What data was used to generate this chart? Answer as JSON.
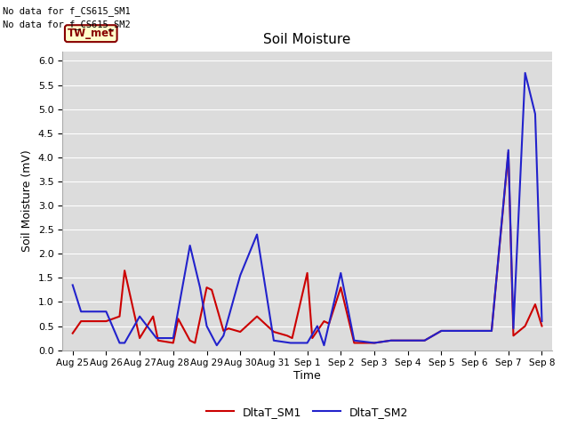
{
  "title": "Soil Moisture",
  "ylabel": "Soil Moisture (mV)",
  "xlabel": "Time",
  "ylim": [
    0.0,
    6.2
  ],
  "yticks": [
    0.0,
    0.5,
    1.0,
    1.5,
    2.0,
    2.5,
    3.0,
    3.5,
    4.0,
    4.5,
    5.0,
    5.5,
    6.0
  ],
  "bg_color": "#dcdcdc",
  "annotations": [
    "No data for f_CS615_SM1",
    "No data for f_CS615_SM2"
  ],
  "box_label": "TW_met",
  "legend_labels": [
    "DltaT_SM1",
    "DltaT_SM2"
  ],
  "sm1_color": "#cc0000",
  "sm2_color": "#2222cc",
  "x_tick_labels": [
    "Aug 25",
    "Aug 26",
    "Aug 27",
    "Aug 28",
    "Aug 29",
    "Aug 30",
    "Aug 31",
    "Sep 1",
    "Sep 2",
    "Sep 3",
    "Sep 4",
    "Sep 5",
    "Sep 6",
    "Sep 7",
    "Sep 8"
  ],
  "sm1_x": [
    0,
    0.25,
    1.0,
    1.4,
    1.55,
    2.0,
    2.4,
    2.55,
    3.0,
    3.15,
    3.5,
    3.65,
    4.0,
    4.15,
    4.5,
    4.65,
    5.0,
    5.5,
    6.0,
    6.4,
    6.55,
    7.0,
    7.15,
    7.5,
    7.65,
    8.0,
    8.4,
    9.0,
    9.5,
    10.0,
    10.5,
    11.0,
    11.5,
    12.0,
    12.5,
    13.0,
    13.15,
    13.5,
    13.8,
    14.0
  ],
  "sm1_y": [
    0.35,
    0.6,
    0.6,
    0.7,
    1.65,
    0.25,
    0.7,
    0.2,
    0.15,
    0.65,
    0.2,
    0.15,
    1.3,
    1.25,
    0.4,
    0.45,
    0.38,
    0.7,
    0.38,
    0.3,
    0.25,
    1.6,
    0.25,
    0.6,
    0.55,
    1.3,
    0.15,
    0.15,
    0.2,
    0.2,
    0.2,
    0.4,
    0.4,
    0.4,
    0.4,
    4.1,
    0.3,
    0.5,
    0.95,
    0.5
  ],
  "sm2_x": [
    0,
    0.25,
    1.0,
    1.4,
    1.55,
    2.0,
    2.5,
    3.0,
    3.5,
    3.8,
    4.0,
    4.3,
    4.5,
    5.0,
    5.5,
    6.0,
    6.5,
    7.0,
    7.3,
    7.5,
    8.0,
    8.4,
    9.0,
    9.5,
    10.0,
    10.5,
    11.0,
    11.5,
    12.0,
    12.5,
    13.0,
    13.15,
    13.5,
    13.8,
    14.0
  ],
  "sm2_y": [
    1.35,
    0.8,
    0.8,
    0.15,
    0.15,
    0.7,
    0.25,
    0.25,
    2.17,
    1.3,
    0.5,
    0.1,
    0.3,
    1.55,
    2.4,
    0.2,
    0.15,
    0.15,
    0.5,
    0.1,
    1.6,
    0.2,
    0.15,
    0.2,
    0.2,
    0.2,
    0.4,
    0.4,
    0.4,
    0.4,
    4.15,
    0.45,
    5.75,
    4.9,
    0.6
  ]
}
